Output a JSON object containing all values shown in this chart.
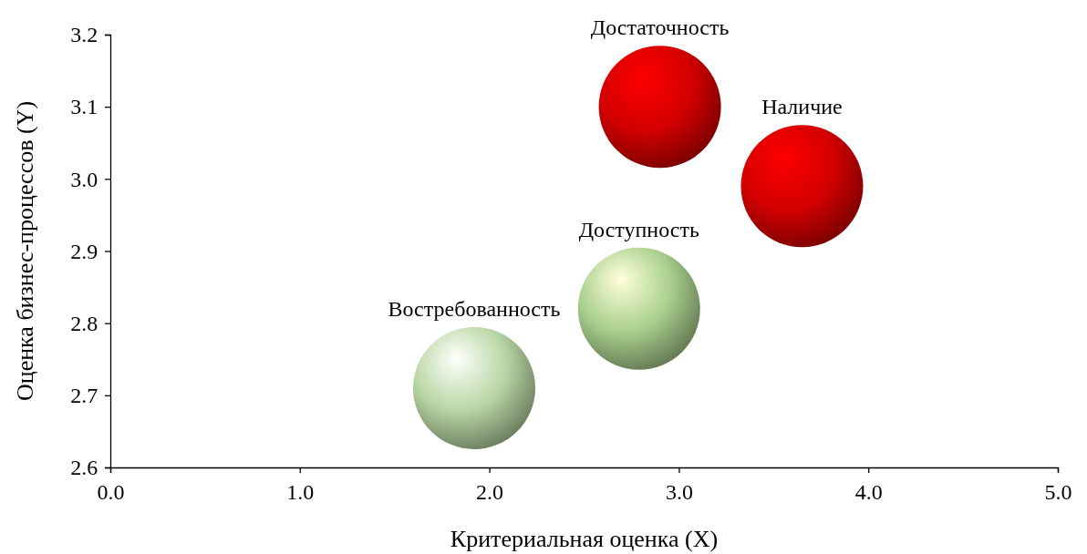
{
  "chart_data": {
    "type": "bubble",
    "xlabel": "Критериальная оценка (X)",
    "ylabel": "Оценка бизнес-процессов (Y)",
    "xlim": [
      0,
      5
    ],
    "xticks": [
      {
        "value": 0,
        "label": "0.0"
      },
      {
        "value": 1,
        "label": "1.0"
      },
      {
        "value": 2,
        "label": "2.0"
      },
      {
        "value": 3,
        "label": "3.0"
      },
      {
        "value": 4,
        "label": "4.0"
      },
      {
        "value": 5,
        "label": "5.0"
      }
    ],
    "ylim": [
      2.6,
      3.2
    ],
    "yticks": [
      {
        "value": 2.6,
        "label": "2.6"
      },
      {
        "value": 2.7,
        "label": "2.7"
      },
      {
        "value": 2.8,
        "label": "2.8"
      },
      {
        "value": 2.9,
        "label": "2.9"
      },
      {
        "value": 3.0,
        "label": "3.0"
      },
      {
        "value": 3.1,
        "label": "3.1"
      },
      {
        "value": 3.2,
        "label": "3.2"
      }
    ],
    "grid": false,
    "series": [
      {
        "name": "Востребованность",
        "color": "#b8d6a4",
        "x": [
          1.92
        ],
        "values": [
          2.71
        ],
        "sizes": [
          1
        ]
      },
      {
        "name": "Доступность",
        "color": "#a9cf8e",
        "x": [
          2.79
        ],
        "values": [
          2.82
        ],
        "sizes": [
          1
        ]
      },
      {
        "name": "Достаточность",
        "color": "#d40000",
        "x": [
          2.9
        ],
        "values": [
          3.1
        ],
        "sizes": [
          1
        ]
      },
      {
        "name": "Наличие",
        "color": "#d40000",
        "x": [
          3.65
        ],
        "values": [
          2.99
        ],
        "sizes": [
          1
        ]
      }
    ]
  }
}
